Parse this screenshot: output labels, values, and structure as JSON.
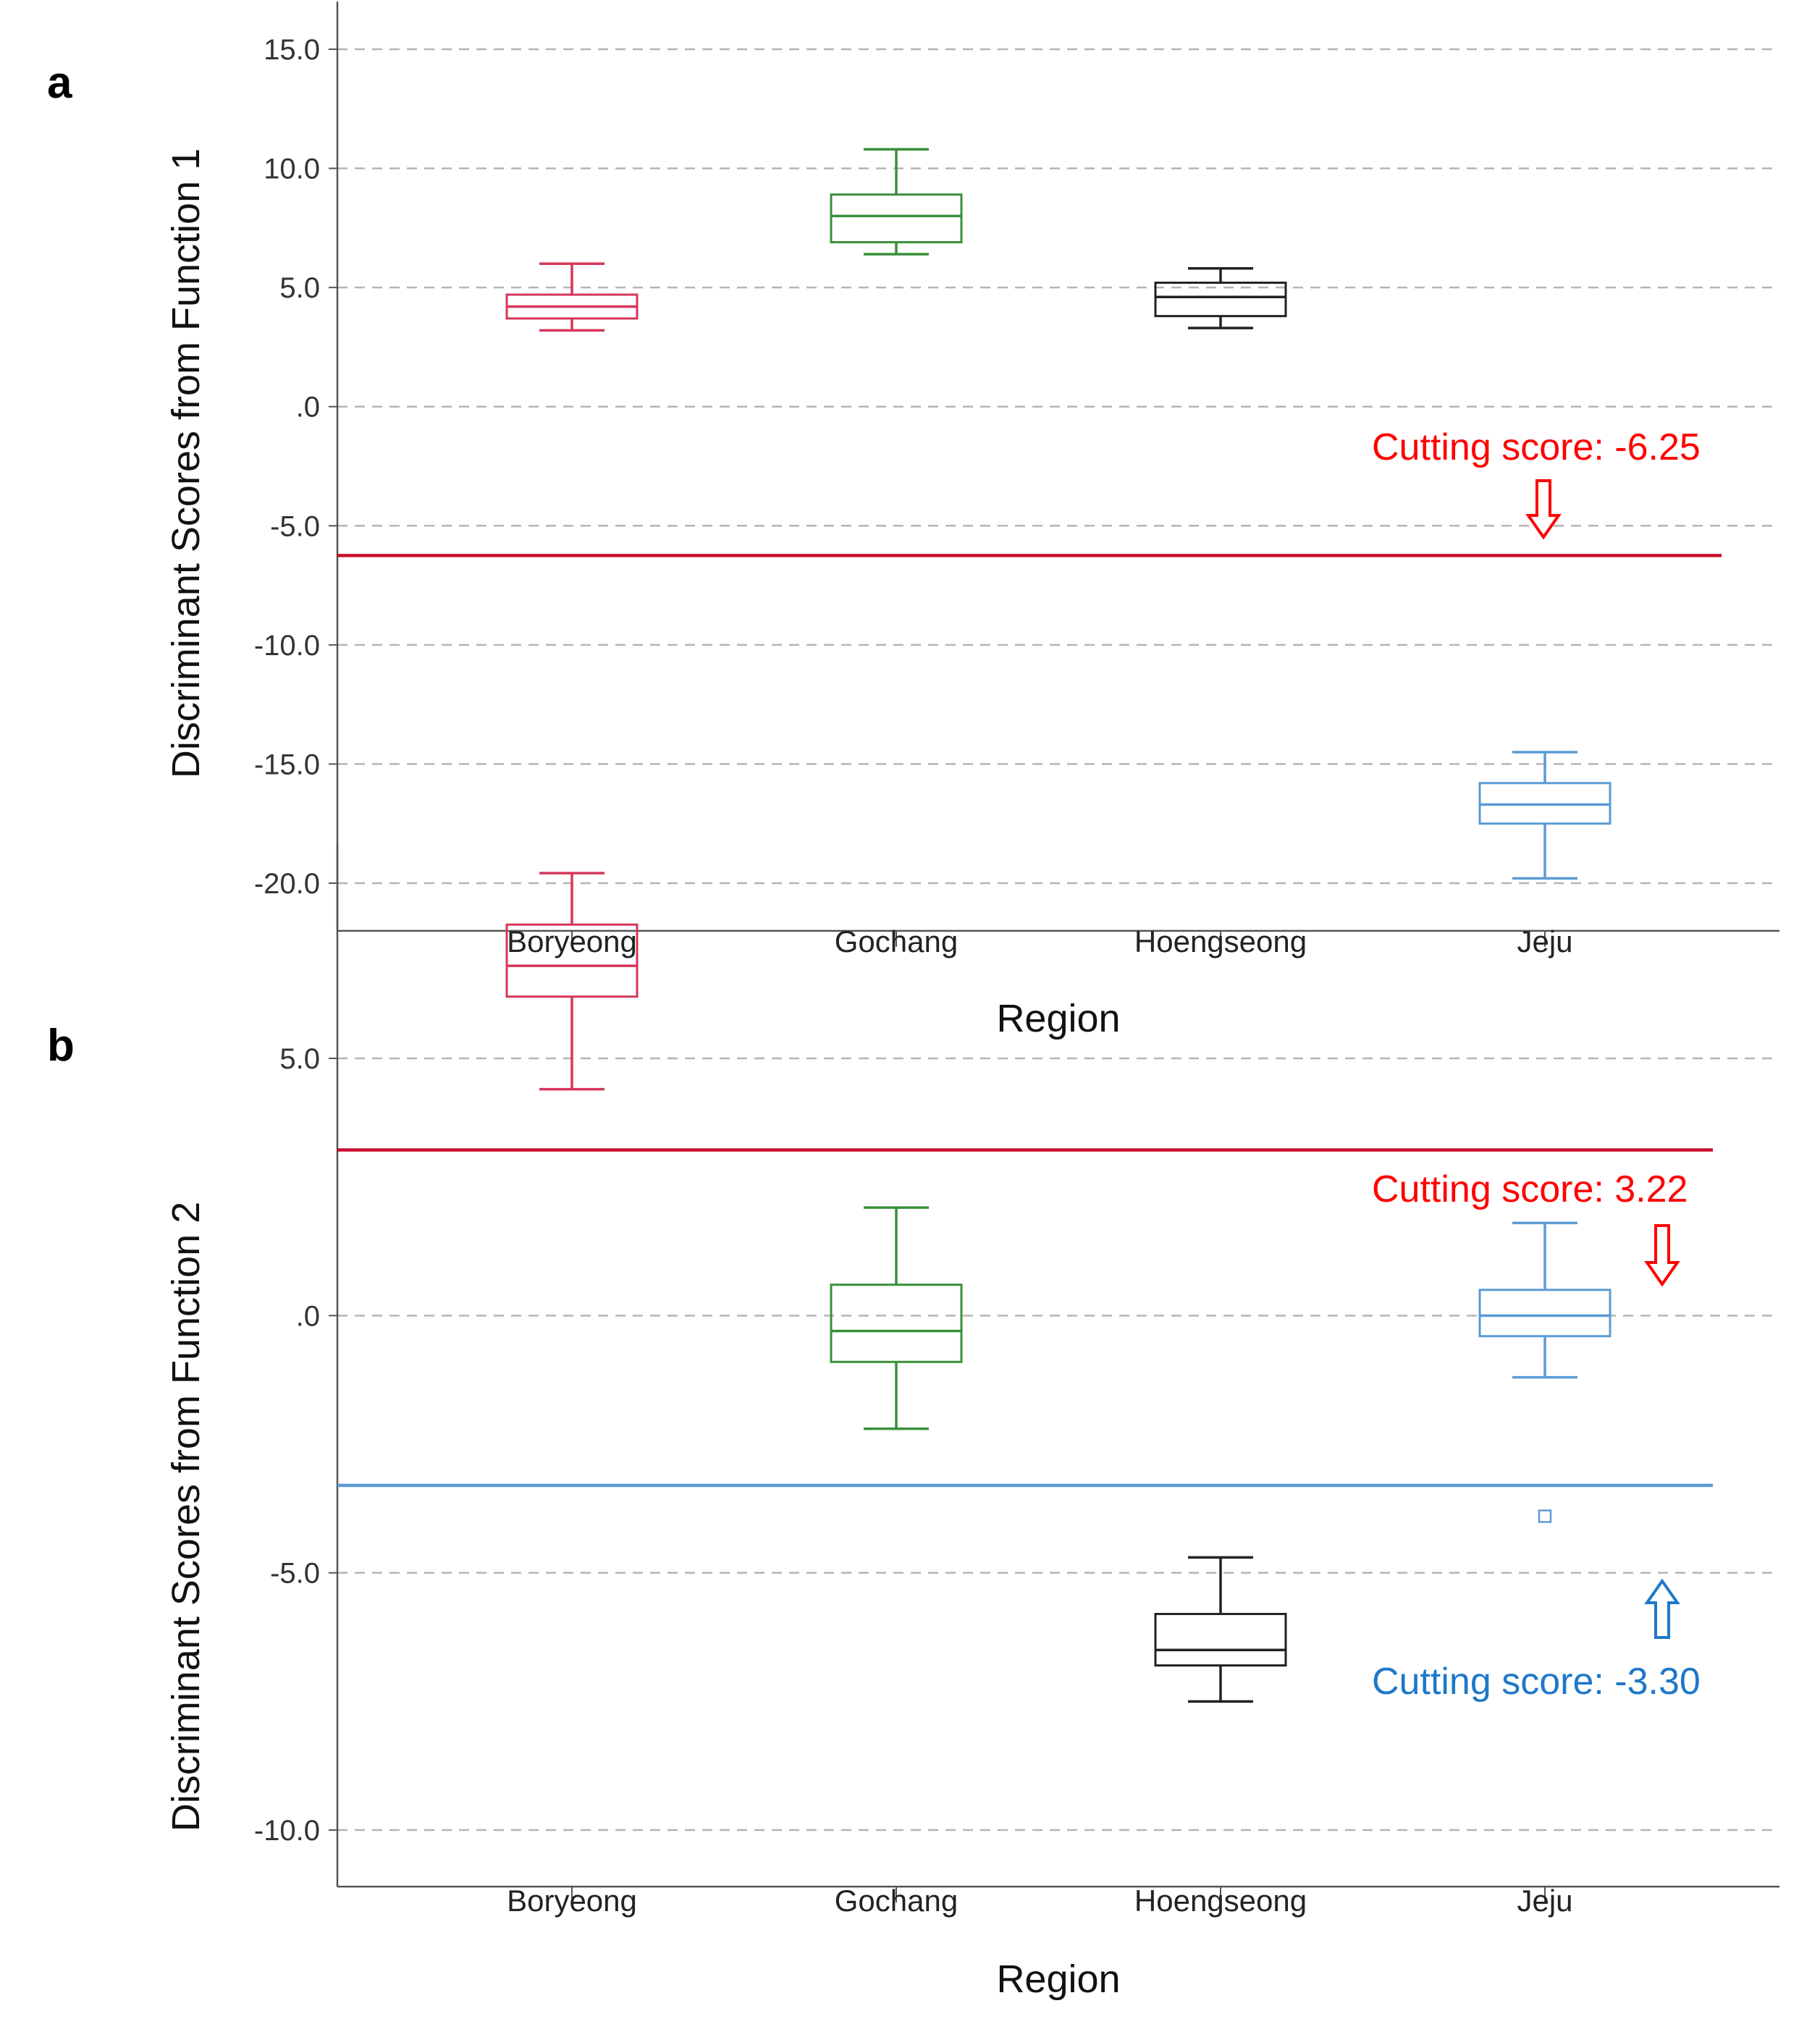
{
  "chart_data": [
    {
      "panel": "a",
      "type": "boxplot",
      "xlabel": "Region",
      "ylabel": "Discriminant Scores from Function 1",
      "ylim": [
        -22,
        17
      ],
      "yticks": [
        15,
        10,
        5,
        0,
        -5,
        -10,
        -15,
        -20
      ],
      "ytick_labels": [
        "15.0",
        "10.0",
        "5.0",
        ".0",
        "-5.0",
        "-10.0",
        "-15.0",
        "-20.0"
      ],
      "grid": "dashed-horizontal",
      "categories": [
        "Boryeong",
        "Gochang",
        "Hoengseong",
        "Jeju"
      ],
      "colors": [
        "#d6365a",
        "#3a8f3a",
        "#222222",
        "#5b9bd5"
      ],
      "boxes": [
        {
          "whisker_low": 3.2,
          "q1": 3.7,
          "median": 4.2,
          "q3": 4.7,
          "whisker_high": 6.0,
          "outliers": []
        },
        {
          "whisker_low": 6.4,
          "q1": 6.9,
          "median": 8.0,
          "q3": 8.9,
          "whisker_high": 10.8,
          "outliers": []
        },
        {
          "whisker_low": 3.3,
          "q1": 3.8,
          "median": 4.6,
          "q3": 5.2,
          "whisker_high": 5.8,
          "outliers": []
        },
        {
          "whisker_low": -19.8,
          "q1": -17.5,
          "median": -16.7,
          "q3": -15.8,
          "whisker_high": -14.5,
          "outliers": []
        }
      ],
      "cutting_lines": [
        {
          "value": -6.25,
          "color": "#c8102e",
          "label": "Cutting score: -6.25",
          "label_color": "#ff0000",
          "arrow": "down"
        }
      ]
    },
    {
      "panel": "b",
      "type": "boxplot",
      "xlabel": "Region",
      "ylabel": "Discriminant Scores from Function 2",
      "ylim": [
        -11.1,
        9.2
      ],
      "yticks": [
        5,
        0,
        -5,
        -10
      ],
      "ytick_labels": [
        "5.0",
        ".0",
        "-5.0",
        "-10.0"
      ],
      "grid": "dashed-horizontal",
      "categories": [
        "Boryeong",
        "Gochang",
        "Hoengseong",
        "Jeju"
      ],
      "colors": [
        "#d6365a",
        "#3a8f3a",
        "#222222",
        "#5b9bd5"
      ],
      "boxes": [
        {
          "whisker_low": 4.4,
          "q1": 6.2,
          "median": 6.8,
          "q3": 7.6,
          "whisker_high": 8.6,
          "outliers": []
        },
        {
          "whisker_low": -2.2,
          "q1": -0.9,
          "median": -0.3,
          "q3": 0.6,
          "whisker_high": 2.1,
          "outliers": []
        },
        {
          "whisker_low": -7.5,
          "q1": -6.8,
          "median": -6.5,
          "q3": -5.8,
          "whisker_high": -4.7,
          "outliers": []
        },
        {
          "whisker_low": -1.2,
          "q1": -0.4,
          "median": 0.0,
          "q3": 0.5,
          "whisker_high": 1.8,
          "outliers": [
            -3.9
          ]
        }
      ],
      "cutting_lines": [
        {
          "value": 3.22,
          "color": "#c8102e",
          "label": "Cutting score: 3.22",
          "label_color": "#ff0000",
          "arrow": "down"
        },
        {
          "value": -3.3,
          "color": "#5b9bd5",
          "label": "Cutting score: -3.30",
          "label_color": "#1f78c8",
          "arrow": "up"
        }
      ]
    }
  ]
}
